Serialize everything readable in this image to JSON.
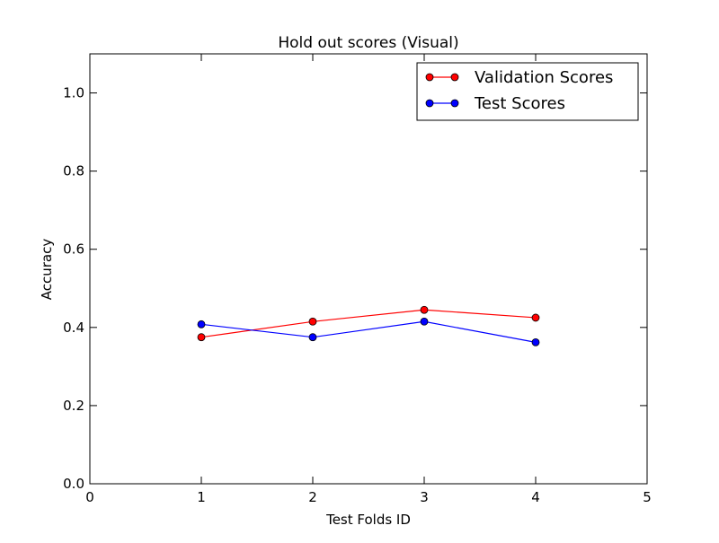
{
  "chart_data": {
    "type": "line",
    "title": "Hold out scores (Visual)",
    "xlabel": "Test Folds ID",
    "ylabel": "Accuracy",
    "xlim": [
      0,
      5
    ],
    "ylim": [
      0,
      1.1
    ],
    "xticks": [
      "0",
      "1",
      "2",
      "3",
      "4",
      "5"
    ],
    "yticks": [
      "0.0",
      "0.2",
      "0.4",
      "0.6",
      "0.8",
      "1.0"
    ],
    "grid": false,
    "legend": "top-right",
    "x": [
      1,
      2,
      3,
      4
    ],
    "series": [
      {
        "name": "Validation Scores",
        "color": "#ff0000",
        "values": [
          0.375,
          0.415,
          0.445,
          0.425
        ]
      },
      {
        "name": "Test Scores",
        "color": "#0000ff",
        "values": [
          0.408,
          0.375,
          0.415,
          0.362
        ]
      }
    ]
  }
}
